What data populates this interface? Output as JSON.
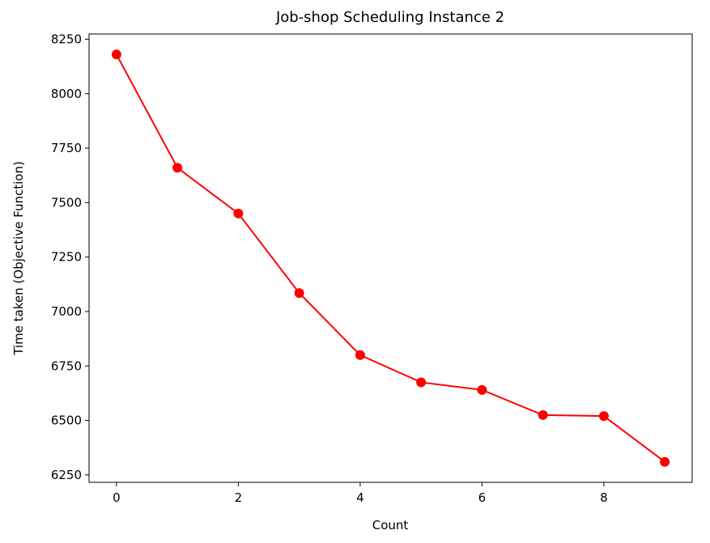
{
  "chart_data": {
    "type": "line",
    "title": "Job-shop Scheduling Instance 2",
    "x_label": "Count",
    "y_label": "Time taken (Objective Function)",
    "x": [
      0,
      1,
      2,
      3,
      4,
      5,
      6,
      7,
      8,
      9
    ],
    "series": [
      {
        "name": "Time taken",
        "color": "#ff0000",
        "values": [
          8180,
          7660,
          7450,
          7085,
          6800,
          6675,
          6640,
          6525,
          6520,
          6310
        ]
      }
    ],
    "xlim": [
      -0.45,
      9.45
    ],
    "xticks": [
      0,
      2,
      4,
      6,
      8
    ],
    "ylim": [
      6216,
      8274
    ],
    "yticks": [
      6250,
      6500,
      6750,
      7000,
      7250,
      7500,
      7750,
      8000,
      8250
    ],
    "grid": false
  }
}
